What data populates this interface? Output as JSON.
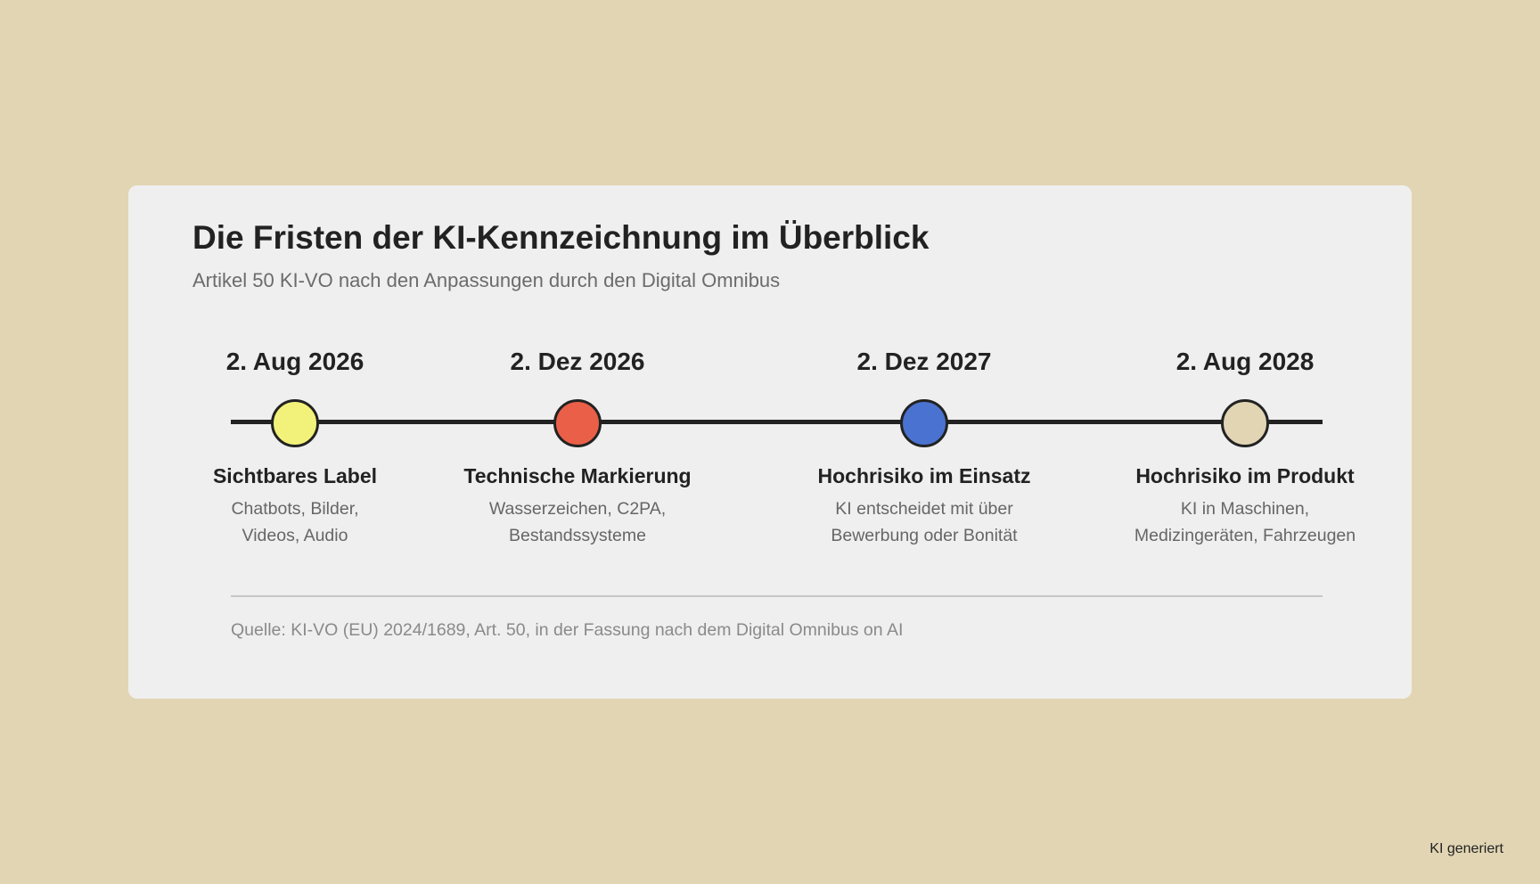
{
  "colors": {
    "background": "#e2d5b4",
    "card": "#efefef"
  },
  "header": {
    "title": "Die Fristen der KI-Kennzeichnung im Überblick",
    "subtitle": "Artikel 50 KI-VO nach den Anpassungen durch den Digital Omnibus"
  },
  "timeline": {
    "milestones": [
      {
        "date": "2. Aug 2026",
        "label": "Sichtbares Label",
        "desc_line1": "Chatbots, Bilder,",
        "desc_line2": "Videos, Audio",
        "color": "#f2f27a"
      },
      {
        "date": "2. Dez 2026",
        "label": "Technische Markierung",
        "desc_line1": "Wasserzeichen, C2PA,",
        "desc_line2": "Bestandssysteme",
        "color": "#ea5f48"
      },
      {
        "date": "2. Dez 2027",
        "label": "Hochrisiko im Einsatz",
        "desc_line1": "KI entscheidet mit über",
        "desc_line2": "Bewerbung oder Bonität",
        "color": "#4a72d0"
      },
      {
        "date": "2. Aug 2028",
        "label": "Hochrisiko im Produkt",
        "desc_line1": "KI in Maschinen,",
        "desc_line2": "Medizingeräten, Fahrzeugen",
        "color": "#e2d5b4"
      }
    ]
  },
  "footer": {
    "source": "Quelle: KI-VO (EU) 2024/1689, Art. 50, in der Fassung nach dem Digital Omnibus on AI"
  },
  "badge": {
    "text": "KI generiert"
  }
}
